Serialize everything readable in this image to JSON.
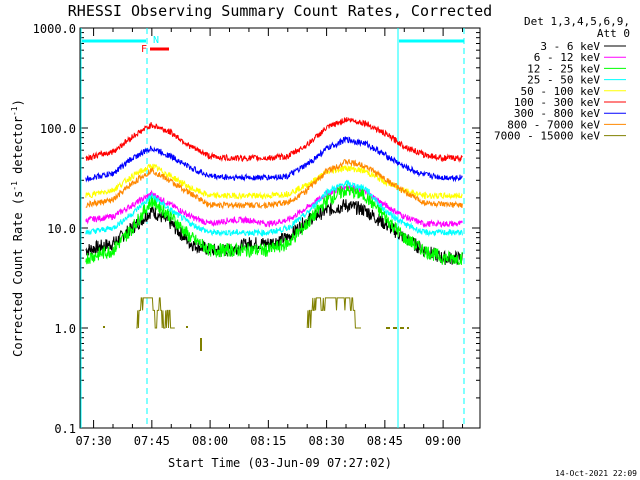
{
  "chart_data": {
    "type": "line",
    "title": "RHESSI Observing Summary Count Rates, Corrected",
    "xlabel": "Start Time (03-Jun-09 07:27:02)",
    "ylabel": "Corrected Count Rate (s",
    "ylabel_sup1": "-1",
    "ylabel_mid": " detector",
    "ylabel_sup2": "-1",
    "ylabel_end": ")",
    "yscale": "log",
    "ylim": [
      0.1,
      1000.0
    ],
    "xlim_minutes": [
      -3.5,
      99.5
    ],
    "yticks": [
      "1000.0",
      "100.0",
      "10.0",
      "1.0",
      "0.1"
    ],
    "xticks": [
      {
        "minute": 0,
        "label": "07:30"
      },
      {
        "minute": 15,
        "label": "07:45"
      },
      {
        "minute": 30,
        "label": "08:00"
      },
      {
        "minute": 45,
        "label": "08:15"
      },
      {
        "minute": 60,
        "label": "08:30"
      },
      {
        "minute": 75,
        "label": "08:45"
      },
      {
        "minute": 90,
        "label": "09:00"
      }
    ],
    "legend": {
      "placement": "right",
      "header1": "Det 1,3,4,5,6,9,",
      "header2": "Att 0"
    },
    "series": [
      {
        "name": "3 - 6 keV",
        "color": "#000000",
        "x": [
          -2,
          5,
          10,
          15,
          20,
          25,
          30,
          35,
          40,
          45,
          50,
          55,
          60,
          65,
          70,
          75,
          80,
          85,
          90,
          95
        ],
        "y": [
          6,
          7,
          10,
          15,
          11,
          7,
          6,
          6,
          7,
          7,
          8,
          12,
          15,
          17,
          15,
          11,
          8,
          6,
          5,
          5
        ]
      },
      {
        "name": "6 - 12 keV",
        "color": "#ff00ff",
        "x": [
          -2,
          5,
          10,
          15,
          20,
          25,
          30,
          35,
          40,
          45,
          50,
          55,
          60,
          65,
          70,
          75,
          80,
          85,
          90,
          95
        ],
        "y": [
          12,
          13,
          17,
          22,
          17,
          13,
          11,
          12,
          12,
          11,
          12,
          16,
          22,
          26,
          23,
          17,
          13,
          11,
          11,
          11
        ]
      },
      {
        "name": "12 - 25 keV",
        "color": "#00ff00",
        "x": [
          -2,
          5,
          10,
          15,
          20,
          25,
          30,
          35,
          40,
          45,
          50,
          55,
          60,
          65,
          70,
          75,
          80,
          85,
          90,
          95
        ],
        "y": [
          5,
          6,
          10,
          19,
          13,
          8,
          6,
          6,
          6,
          6,
          7,
          11,
          19,
          24,
          21,
          13,
          8,
          6,
          5,
          5
        ]
      },
      {
        "name": "25 - 50 keV",
        "color": "#00ffff",
        "x": [
          -2,
          5,
          10,
          15,
          20,
          25,
          30,
          35,
          40,
          45,
          50,
          55,
          60,
          65,
          70,
          75,
          80,
          85,
          90,
          95
        ],
        "y": [
          9,
          10,
          14,
          21,
          15,
          11,
          9,
          9,
          9,
          9,
          10,
          14,
          23,
          28,
          25,
          15,
          11,
          9,
          9,
          9
        ]
      },
      {
        "name": "50 - 100 keV",
        "color": "#ffff00",
        "x": [
          -2,
          5,
          10,
          15,
          20,
          25,
          30,
          35,
          40,
          45,
          50,
          55,
          60,
          65,
          70,
          75,
          80,
          85,
          90,
          95
        ],
        "y": [
          21,
          24,
          33,
          42,
          33,
          25,
          21,
          21,
          21,
          21,
          22,
          27,
          36,
          40,
          37,
          29,
          24,
          21,
          21,
          21
        ]
      },
      {
        "name": "100 - 300 keV",
        "color": "#ff0000",
        "x": [
          -2,
          5,
          10,
          15,
          20,
          25,
          30,
          35,
          40,
          45,
          50,
          55,
          60,
          65,
          70,
          75,
          80,
          85,
          90,
          95
        ],
        "y": [
          50,
          58,
          82,
          108,
          90,
          65,
          52,
          50,
          50,
          50,
          52,
          68,
          100,
          122,
          112,
          88,
          66,
          54,
          50,
          50
        ]
      },
      {
        "name": "300 - 800 keV",
        "color": "#0000ff",
        "x": [
          -2,
          5,
          10,
          15,
          20,
          25,
          30,
          35,
          40,
          45,
          50,
          55,
          60,
          65,
          70,
          75,
          80,
          85,
          90,
          95
        ],
        "y": [
          31,
          35,
          50,
          63,
          52,
          40,
          33,
          32,
          32,
          32,
          33,
          43,
          62,
          77,
          70,
          54,
          41,
          34,
          32,
          32
        ]
      },
      {
        "name": "800 - 7000 keV",
        "color": "#ff8800",
        "x": [
          -2,
          5,
          10,
          15,
          20,
          25,
          30,
          35,
          40,
          45,
          50,
          55,
          60,
          65,
          70,
          75,
          80,
          85,
          90,
          95
        ],
        "y": [
          17,
          19,
          28,
          38,
          29,
          22,
          17,
          17,
          17,
          17,
          18,
          24,
          37,
          46,
          42,
          31,
          23,
          18,
          17,
          17
        ]
      },
      {
        "name": "7000 - 15000 keV",
        "color": "#808000",
        "x": [
          11,
          12,
          13,
          14,
          15,
          16,
          17,
          18,
          19,
          20,
          21
        ],
        "y": [
          1,
          1.5,
          2,
          1.8,
          2,
          1.2,
          1.8,
          1,
          1.6,
          1,
          1
        ]
      },
      {
        "name": "",
        "color": "#808000",
        "x": [
          55,
          56,
          57,
          58,
          59,
          60,
          61,
          62,
          63,
          64,
          65,
          66,
          67,
          68,
          69
        ],
        "y": [
          1,
          1.5,
          1.8,
          2,
          1.6,
          2,
          2.1,
          2,
          1.8,
          2,
          1.9,
          2,
          1.5,
          1,
          1
        ]
      }
    ],
    "markers": {
      "flags": [
        {
          "label": "F",
          "color": "#ff0000"
        },
        {
          "label": "N",
          "color": "#00ffff"
        }
      ]
    }
  },
  "footer": {
    "date_stamp": "14-Oct-2021 22:09"
  },
  "colors": {
    "cyan": "#00ffff",
    "red": "#ff0000",
    "axis": "#000000"
  }
}
